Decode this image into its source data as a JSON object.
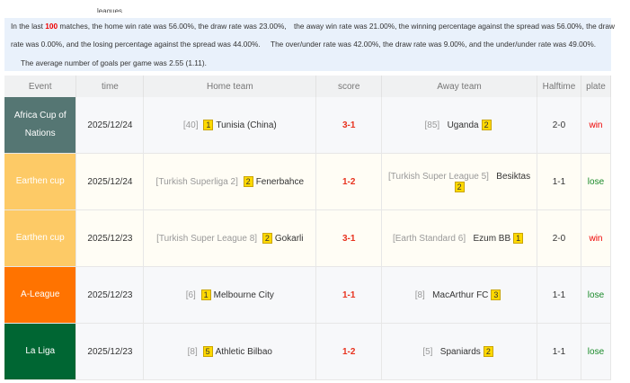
{
  "clipped_label": "leagues",
  "summary": {
    "line1_a": "In the last ",
    "count": "100",
    "line1_b": " matches, the home win rate was 56.00%, the draw rate was 23.00%,",
    "line1_c": "the away win rate was 21.00%, the winning percentage against the spread was 56.00%, the draw",
    "line2_a": "rate was 0.00%, and the losing percentage against the spread was 44.00%.",
    "line2_b": "The over/under rate was 42.00%, the draw rate was 9.00%, and the under/under rate was 49.00%.",
    "line3": "The average number of goals per game was 2.55 (1.11)."
  },
  "headers": [
    "Event",
    "time",
    "Home team",
    "score",
    "Away team",
    "Halftime",
    "plate"
  ],
  "rows": [
    {
      "event": "Africa Cup of Nations",
      "color": "#557673",
      "time": "2025/12/24",
      "home_rank": "[40]",
      "home_badge": "1",
      "home": "Tunisia (China)",
      "score": "3-1",
      "away_rank": "[85]",
      "away": "Uganda",
      "away_badge": "2",
      "half": "2-0",
      "plate": "win"
    },
    {
      "event": "Earthen cup",
      "color": "#fdca66",
      "time": "2025/12/24",
      "home_rank": "[Turkish Superliga 2]",
      "home_badge": "2",
      "home": "Fenerbahce",
      "score": "1-2",
      "away_rank": "[Turkish Super League 5]",
      "away": "Besiktas",
      "away_badge": "2",
      "half": "1-1",
      "plate": "lose"
    },
    {
      "event": "Earthen cup",
      "color": "#fdca66",
      "time": "2025/12/23",
      "home_rank": "[Turkish Super League 8]",
      "home_badge": "2",
      "home": "Gokarli",
      "score": "3-1",
      "away_rank": "[Earth Standard 6]",
      "away": "Ezum BB",
      "away_badge": "1",
      "half": "2-0",
      "plate": "win"
    },
    {
      "event": "A-League",
      "color": "#ff7300",
      "time": "2025/12/23",
      "home_rank": "[6]",
      "home_badge": "1",
      "home": "Melbourne City",
      "score": "1-1",
      "away_rank": "[8]",
      "away": "MacArthur FC",
      "away_badge": "3",
      "half": "1-1",
      "plate": "lose"
    },
    {
      "event": "La Liga",
      "color": "#006633",
      "time": "2025/12/23",
      "home_rank": "[8]",
      "home_badge": "5",
      "home": "Athletic Bilbao",
      "score": "1-2",
      "away_rank": "[5]",
      "away": "Spaniards",
      "away_badge": "2",
      "half": "1-1",
      "plate": "lose"
    }
  ]
}
